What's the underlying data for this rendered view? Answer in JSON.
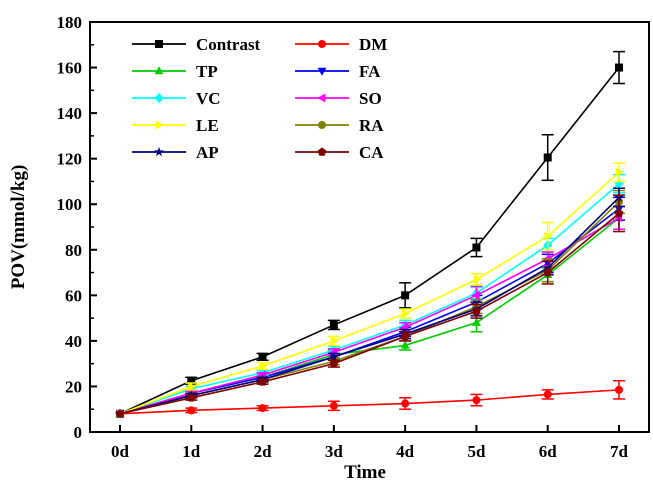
{
  "chart_data": {
    "type": "line",
    "xlabel": "Time",
    "ylabel": "POV(mmol/kg)",
    "categories": [
      "0d",
      "1d",
      "2d",
      "3d",
      "4d",
      "5d",
      "6d",
      "7d"
    ],
    "ylim": [
      0,
      180
    ],
    "yticks": [
      0,
      20,
      40,
      60,
      80,
      100,
      120,
      140,
      160,
      180
    ],
    "grid": false,
    "legend_placement": "top-left",
    "series": [
      {
        "name": "Contrast",
        "color": "#000000",
        "marker": "square",
        "values": [
          8,
          22.5,
          33,
          47,
          60,
          81,
          120.5,
          160
        ],
        "errors": [
          0,
          1.5,
          1.5,
          2,
          5.5,
          4,
          10,
          7
        ]
      },
      {
        "name": "DM",
        "color": "#ff0000",
        "marker": "circle",
        "values": [
          8,
          9.5,
          10.5,
          11.5,
          12.5,
          14,
          16.5,
          18.5
        ],
        "errors": [
          0,
          1,
          1,
          2,
          2.5,
          2.5,
          2,
          4
        ]
      },
      {
        "name": "TP",
        "color": "#00cc00",
        "marker": "triangle-up",
        "values": [
          8,
          17,
          24,
          34,
          38,
          48,
          69,
          94
        ],
        "errors": [
          0,
          1,
          1,
          2,
          2,
          4,
          3,
          5
        ]
      },
      {
        "name": "FA",
        "color": "#0000ff",
        "marker": "triangle-down",
        "values": [
          8,
          17,
          24,
          33,
          44,
          57,
          74,
          98
        ],
        "errors": [
          0,
          1,
          1,
          1.5,
          2,
          3,
          4,
          5
        ]
      },
      {
        "name": "VC",
        "color": "#00ffff",
        "marker": "diamond",
        "values": [
          8,
          19,
          26,
          36,
          47,
          61,
          82,
          109
        ],
        "errors": [
          0,
          1,
          1,
          1.5,
          2,
          2.5,
          3,
          4
        ]
      },
      {
        "name": "SO",
        "color": "#ff00ff",
        "marker": "triangle-left",
        "values": [
          8,
          17,
          25,
          35,
          46,
          60,
          76,
          94
        ],
        "errors": [
          0,
          1,
          1,
          1.5,
          2,
          4,
          3,
          5
        ]
      },
      {
        "name": "LE",
        "color": "#ffff00",
        "marker": "triangle-right",
        "values": [
          8,
          20,
          29,
          40,
          52,
          67,
          86,
          114
        ],
        "errors": [
          0,
          1.5,
          1.5,
          2,
          2,
          2.5,
          6,
          4
        ]
      },
      {
        "name": "RA",
        "color": "#808000",
        "marker": "circle",
        "values": [
          8,
          16,
          23,
          31,
          42,
          55,
          71,
          101
        ],
        "errors": [
          0,
          1,
          1,
          1.5,
          2,
          3,
          5,
          5
        ]
      },
      {
        "name": "AP",
        "color": "#000080",
        "marker": "star",
        "values": [
          8,
          16,
          23,
          33,
          43,
          54,
          72,
          103
        ],
        "errors": [
          0,
          1,
          1,
          1.5,
          2,
          3,
          3,
          4
        ]
      },
      {
        "name": "CA",
        "color": "#800000",
        "marker": "pentagon",
        "values": [
          8,
          15,
          22,
          30,
          42,
          53,
          70,
          96
        ],
        "errors": [
          0,
          1,
          1,
          1.5,
          2,
          3,
          5,
          8
        ]
      }
    ]
  }
}
